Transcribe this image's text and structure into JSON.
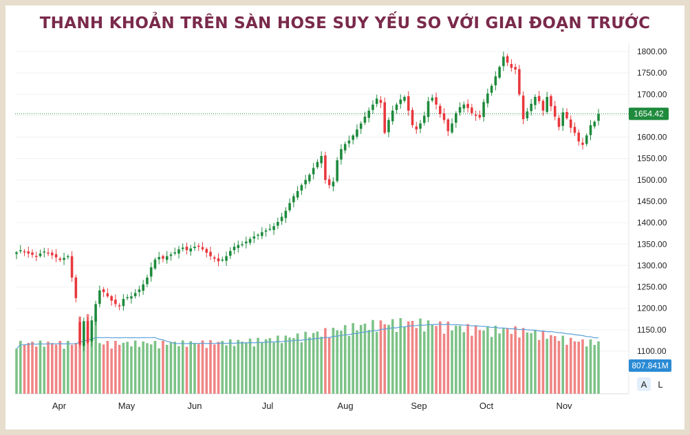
{
  "title": "THANH KHOẢN TRÊN SÀN HOSE SUY YẾU SO VỚI GIAI ĐOẠN TRƯỚC",
  "colors": {
    "up": "#1e8a3c",
    "down": "#e8383d",
    "volume_up": "#7cc287",
    "volume_down": "#f08484",
    "volume_ma": "#5aa0d8",
    "grid": "#eef0f3",
    "badge_price": "#1e8a3c",
    "badge_volume": "#2a8ad4"
  },
  "controls": {
    "auto_label": "A",
    "log_label": "L"
  },
  "chart_data": {
    "type": "candlestick",
    "title": "THANH KHOẢN TRÊN SÀN HOSE SUY YẾU SO VỚI GIAI ĐOẠN TRƯỚC",
    "x_month_labels": [
      "Apr",
      "May",
      "Jun",
      "Jul",
      "Aug",
      "Sep",
      "Oct",
      "Nov"
    ],
    "y_ticks": [
      "1800.00",
      "1750.00",
      "1700.00",
      "1650.00",
      "1600.00",
      "1550.00",
      "1500.00",
      "1450.00",
      "1400.00",
      "1350.00",
      "1300.00",
      "1250.00",
      "1200.00",
      "1150.00",
      "1100.00"
    ],
    "ylim": [
      1080,
      1815
    ],
    "last_price": 1654.42,
    "last_price_label": "1654.42",
    "last_volume_label": "807.841M",
    "price_close": [
      1331,
      1336,
      1333,
      1328,
      1325,
      1322,
      1328,
      1333,
      1330,
      1324,
      1319,
      1313,
      1318,
      1322,
      1272,
      1224,
      1115,
      1170,
      1120,
      1172,
      1210,
      1242,
      1238,
      1228,
      1218,
      1210,
      1205,
      1222,
      1226,
      1228,
      1236,
      1244,
      1256,
      1272,
      1296,
      1314,
      1320,
      1316,
      1322,
      1326,
      1331,
      1338,
      1342,
      1336,
      1340,
      1344,
      1346,
      1338,
      1330,
      1322,
      1316,
      1310,
      1314,
      1322,
      1334,
      1344,
      1348,
      1350,
      1356,
      1362,
      1368,
      1372,
      1378,
      1382,
      1386,
      1392,
      1402,
      1414,
      1428,
      1446,
      1462,
      1474,
      1488,
      1500,
      1512,
      1528,
      1542,
      1556,
      1500,
      1488,
      1496,
      1546,
      1572,
      1584,
      1592,
      1604,
      1618,
      1632,
      1648,
      1662,
      1676,
      1690,
      1680,
      1610,
      1640,
      1662,
      1676,
      1688,
      1694,
      1662,
      1628,
      1618,
      1632,
      1650,
      1684,
      1692,
      1676,
      1654,
      1640,
      1614,
      1632,
      1656,
      1670,
      1676,
      1668,
      1656,
      1650,
      1646,
      1682,
      1702,
      1720,
      1742,
      1764,
      1788,
      1774,
      1762,
      1758,
      1700,
      1642,
      1660,
      1678,
      1694,
      1684,
      1662,
      1694,
      1672,
      1648,
      1624,
      1658,
      1644,
      1622,
      1610,
      1590,
      1582,
      1604,
      1628,
      1636,
      1654
    ]
  }
}
